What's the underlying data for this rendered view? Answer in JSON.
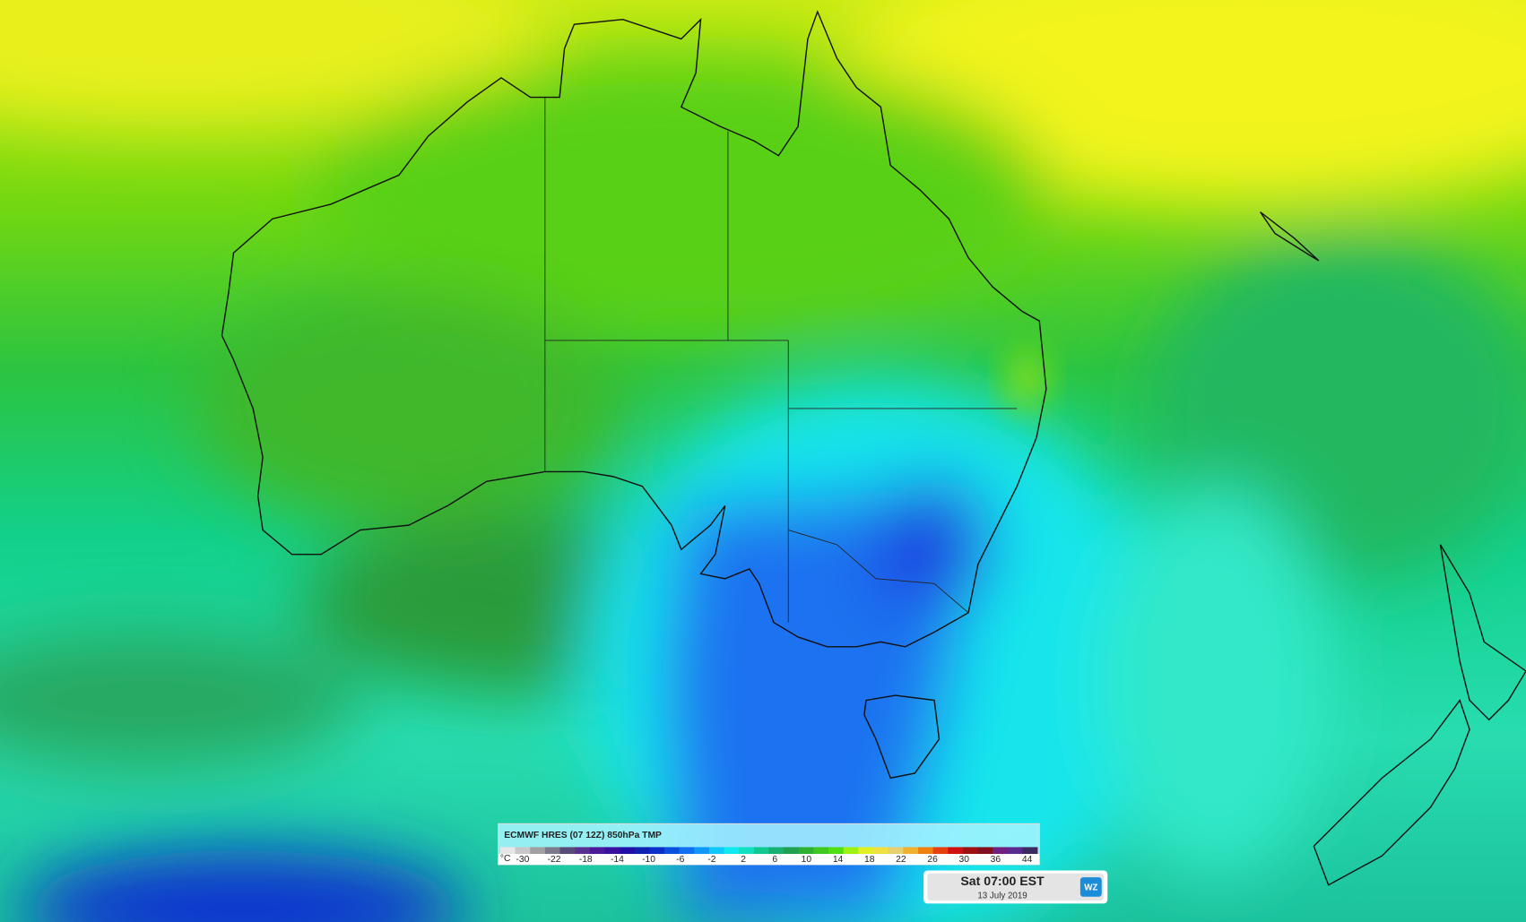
{
  "legend": {
    "title": "ECMWF HRES (07 12Z) 850hPa TMP",
    "unit": "°C",
    "ticks": [
      -30,
      -22,
      -18,
      -14,
      -10,
      -6,
      -2,
      2,
      6,
      10,
      14,
      18,
      22,
      26,
      30,
      36,
      44
    ],
    "colors": [
      "#e6e6e6",
      "#c8c8c8",
      "#a0a0a0",
      "#7a7a8c",
      "#5a4a7a",
      "#5a3090",
      "#4a1a9a",
      "#3a10a0",
      "#2010a8",
      "#1020b0",
      "#0a30c8",
      "#0a50e0",
      "#1070f0",
      "#1098f8",
      "#10c8f8",
      "#10e8f0",
      "#10e0c0",
      "#10c890",
      "#18b070",
      "#20a050",
      "#30b030",
      "#40c820",
      "#50e010",
      "#a0f010",
      "#e0f020",
      "#f0e040",
      "#e8d070",
      "#f0b030",
      "#f08010",
      "#e84010",
      "#d01010",
      "#a01010",
      "#801020",
      "#702080",
      "#5a2a90",
      "#3a2a60"
    ]
  },
  "time_box": {
    "time": "Sat 07:00 EST",
    "date": "13 July 2019",
    "logo": "WZ"
  }
}
